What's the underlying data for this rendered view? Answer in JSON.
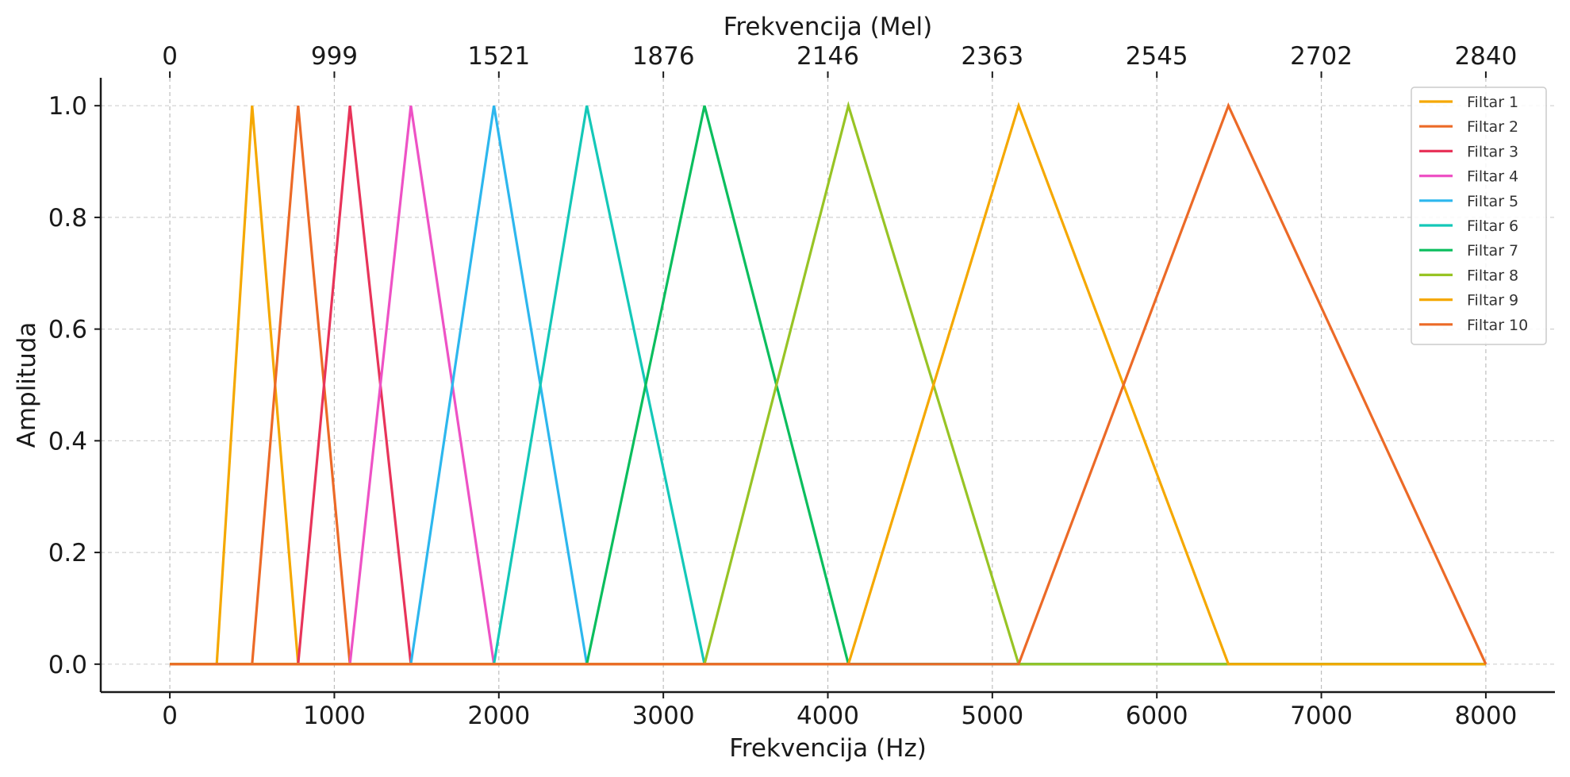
{
  "chart_data": {
    "type": "line",
    "title": "",
    "xlabel": "Frekvencija (Hz)",
    "ylabel": "Amplituda",
    "x2label": "Frekvencija (Mel)",
    "xlim": [
      -420,
      8420
    ],
    "ylim": [
      -0.05,
      1.05
    ],
    "xticks": [
      0,
      1000,
      2000,
      3000,
      4000,
      5000,
      6000,
      7000,
      8000
    ],
    "xtick_labels": [
      "0",
      "1000",
      "2000",
      "3000",
      "4000",
      "5000",
      "6000",
      "7000",
      "8000"
    ],
    "x2ticks": [
      0,
      1000,
      2000,
      3000,
      4000,
      5000,
      6000,
      7000,
      8000
    ],
    "x2tick_labels": [
      "0",
      "999",
      "1521",
      "1876",
      "2146",
      "2363",
      "2545",
      "2702",
      "2840"
    ],
    "yticks": [
      0.0,
      0.2,
      0.4,
      0.6,
      0.8,
      1.0
    ],
    "ytick_labels": [
      "0.0",
      "0.2",
      "0.4",
      "0.6",
      "0.8",
      "1.0"
    ],
    "grid": true,
    "legend_position": "top-right",
    "series": [
      {
        "name": "Filtar 1",
        "color": "#F5A800",
        "x": [
          0,
          285,
          500,
          780,
          8000
        ],
        "y": [
          0,
          0,
          1,
          0,
          0
        ]
      },
      {
        "name": "Filtar 2",
        "color": "#EC6A27",
        "x": [
          0,
          500,
          780,
          1095,
          8000
        ],
        "y": [
          0,
          0,
          1,
          0,
          0
        ]
      },
      {
        "name": "Filtar 3",
        "color": "#E8345A",
        "x": [
          0,
          780,
          1095,
          1465,
          8000
        ],
        "y": [
          0,
          0,
          1,
          0,
          0
        ]
      },
      {
        "name": "Filtar 4",
        "color": "#EE52C5",
        "x": [
          0,
          1095,
          1465,
          1970,
          8000
        ],
        "y": [
          0,
          0,
          1,
          0,
          0
        ]
      },
      {
        "name": "Filtar 5",
        "color": "#2DB7EE",
        "x": [
          0,
          1465,
          1970,
          2535,
          8000
        ],
        "y": [
          0,
          0,
          1,
          0,
          0
        ]
      },
      {
        "name": "Filtar 6",
        "color": "#14C8B8",
        "x": [
          0,
          1970,
          2535,
          3250,
          8000
        ],
        "y": [
          0,
          0,
          1,
          0,
          0
        ]
      },
      {
        "name": "Filtar 7",
        "color": "#0BBE5E",
        "x": [
          0,
          2535,
          3250,
          4125,
          8000
        ],
        "y": [
          0,
          0,
          1,
          0,
          0
        ]
      },
      {
        "name": "Filtar 8",
        "color": "#98C425",
        "x": [
          0,
          3250,
          4125,
          5160,
          8000
        ],
        "y": [
          0,
          0,
          1,
          0,
          0
        ]
      },
      {
        "name": "Filtar 9",
        "color": "#F5A800",
        "x": [
          0,
          4125,
          5160,
          6435,
          8000
        ],
        "y": [
          0,
          0,
          1,
          0,
          0
        ]
      },
      {
        "name": "Filtar 10",
        "color": "#EC6A27",
        "x": [
          0,
          5160,
          6435,
          8000
        ],
        "y": [
          0,
          0,
          1,
          0
        ]
      }
    ]
  }
}
